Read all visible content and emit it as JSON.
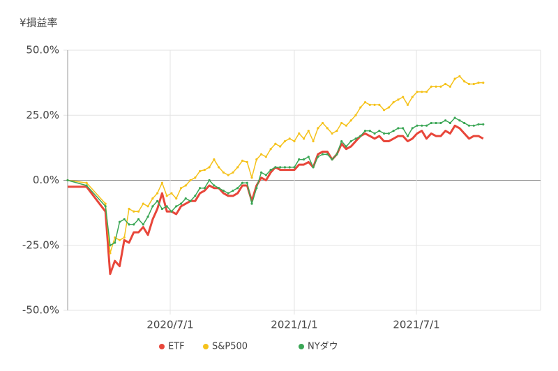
{
  "chart_data": {
    "type": "line",
    "y_label": "¥損益率",
    "x": [
      "2020/1/31",
      "2020/2/28",
      "2020/3/27",
      "2020/4/3",
      "2020/4/10",
      "2020/4/17",
      "2020/4/24",
      "2020/5/1",
      "2020/5/8",
      "2020/5/15",
      "2020/5/22",
      "2020/5/29",
      "2020/6/5",
      "2020/6/12",
      "2020/6/19",
      "2020/6/26",
      "2020/7/3",
      "2020/7/10",
      "2020/7/17",
      "2020/7/24",
      "2020/7/31",
      "2020/8/7",
      "2020/8/14",
      "2020/8/21",
      "2020/8/28",
      "2020/9/4",
      "2020/9/11",
      "2020/9/18",
      "2020/9/25",
      "2020/10/2",
      "2020/10/9",
      "2020/10/16",
      "2020/10/23",
      "2020/10/30",
      "2020/11/6",
      "2020/11/13",
      "2020/11/20",
      "2020/11/27",
      "2020/12/4",
      "2020/12/11",
      "2020/12/18",
      "2020/12/25",
      "2021/1/1",
      "2021/1/8",
      "2021/1/15",
      "2021/1/22",
      "2021/1/29",
      "2021/2/5",
      "2021/2/12",
      "2021/2/19",
      "2021/2/26",
      "2021/3/5",
      "2021/3/12",
      "2021/3/19",
      "2021/3/26",
      "2021/4/2",
      "2021/4/9",
      "2021/4/16",
      "2021/4/23",
      "2021/4/30",
      "2021/5/7",
      "2021/5/14",
      "2021/5/21",
      "2021/5/28",
      "2021/6/4",
      "2021/6/11",
      "2021/6/18",
      "2021/6/25",
      "2021/7/2",
      "2021/7/9",
      "2021/7/16",
      "2021/7/23",
      "2021/7/30",
      "2021/8/6",
      "2021/8/13",
      "2021/8/20",
      "2021/8/27",
      "2021/9/3",
      "2021/9/10",
      "2021/9/17",
      "2021/9/24",
      "2021/10/1",
      "2021/10/8"
    ],
    "series": [
      {
        "name": "ETF",
        "color": "#e8463a",
        "values": [
          -2.5,
          -2.5,
          -12,
          -36,
          -31,
          -33,
          -23,
          -24,
          -20,
          -20,
          -18,
          -21,
          -15,
          -11,
          -5,
          -12,
          -12,
          -13,
          -10,
          -9,
          -8,
          -8,
          -5,
          -4,
          -2,
          -3,
          -3,
          -5,
          -6,
          -6,
          -5,
          -2,
          -2,
          -8,
          -2,
          1,
          0,
          3,
          5,
          4,
          4,
          4,
          4,
          6,
          6,
          7,
          5,
          10,
          11,
          11,
          8,
          10,
          14,
          12,
          13,
          15,
          17,
          18,
          17,
          16,
          17,
          15,
          15,
          16,
          17,
          17,
          15,
          16,
          18,
          19,
          16,
          18,
          17,
          17,
          19,
          18,
          21,
          20,
          18,
          16,
          17,
          17,
          16
        ]
      },
      {
        "name": "S&P500",
        "color": "#f5c21b",
        "values": [
          0,
          -1,
          -9,
          -28,
          -22,
          -23,
          -22,
          -11,
          -12,
          -12,
          -9,
          -10,
          -7,
          -5,
          -1,
          -6,
          -5,
          -7,
          -3,
          -2,
          0,
          1,
          3.5,
          4,
          5,
          8,
          5,
          3,
          2,
          3,
          5,
          7.5,
          7,
          1,
          8,
          10,
          9,
          12,
          14,
          13,
          15,
          16,
          15,
          18,
          16,
          19,
          15,
          20,
          22,
          20,
          18,
          19,
          22,
          21,
          23,
          25,
          28,
          30,
          29,
          29,
          29,
          27,
          28,
          30,
          31,
          32,
          29,
          32,
          34,
          34,
          34,
          36,
          36,
          36,
          37,
          36,
          39,
          40,
          38,
          37,
          37,
          37.5,
          37.5
        ]
      },
      {
        "name": "NYダウ",
        "color": "#3aa655",
        "values": [
          0,
          -2,
          -10,
          -25,
          -24,
          -16,
          -15,
          -17,
          -17,
          -15,
          -17,
          -14,
          -10,
          -8,
          -11,
          -10,
          -12,
          -10,
          -9,
          -7,
          -8,
          -6,
          -3,
          -3,
          0,
          -2,
          -3,
          -4,
          -5,
          -4,
          -3,
          -1,
          -1,
          -9,
          -3,
          3,
          2,
          4,
          5,
          5,
          5,
          5,
          5,
          8,
          8,
          9,
          5,
          9,
          10,
          10,
          8,
          10,
          15,
          13,
          15,
          16,
          17,
          19,
          19,
          18,
          19,
          18,
          18,
          19,
          20,
          20,
          17,
          20,
          21,
          21,
          21,
          22,
          22,
          22,
          23,
          22,
          24,
          23,
          22,
          21,
          21,
          21.5,
          21.5
        ]
      }
    ],
    "xlim": [
      "2020/1/31",
      "2022/1/1"
    ],
    "xticks": [
      "2020/7/1",
      "2021/1/1",
      "2021/7/1"
    ],
    "ylim": [
      -50,
      50
    ],
    "yticks": [
      {
        "value": -50,
        "label": "-50.0%"
      },
      {
        "value": -25,
        "label": "-25.0%"
      },
      {
        "value": 0,
        "label": "0.0%"
      },
      {
        "value": 25,
        "label": "25.0%"
      },
      {
        "value": 50,
        "label": "50.0%"
      }
    ],
    "grid": true,
    "legend": "bottom"
  }
}
